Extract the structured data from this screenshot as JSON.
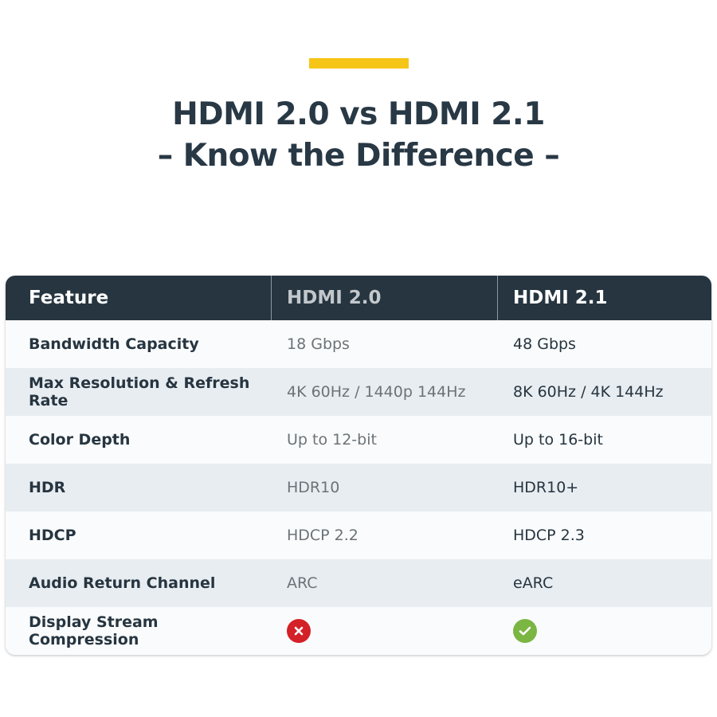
{
  "title_line1": "HDMI 2.0 vs HDMI 2.1",
  "title_line2": "– Know the Difference –",
  "colors": {
    "accent": "#f5c518",
    "header_bg": "#263540",
    "no": "#d42027",
    "yes": "#7bb642"
  },
  "table": {
    "headers": [
      "Feature",
      "HDMI 2.0",
      "HDMI 2.1"
    ],
    "rows": [
      {
        "feature": "Bandwidth Capacity",
        "hdmi20": "18 Gbps",
        "hdmi21": "48 Gbps"
      },
      {
        "feature": "Max Resolution & Refresh Rate",
        "hdmi20": "4K 60Hz / 1440p 144Hz",
        "hdmi21": "8K 60Hz / 4K 144Hz"
      },
      {
        "feature": "Color Depth",
        "hdmi20": "Up to 12-bit",
        "hdmi21": "Up to 16-bit"
      },
      {
        "feature": "HDR",
        "hdmi20": "HDR10",
        "hdmi21": "HDR10+"
      },
      {
        "feature": "HDCP",
        "hdmi20": "HDCP 2.2",
        "hdmi21": "HDCP 2.3"
      },
      {
        "feature": "Audio Return Channel",
        "hdmi20": "ARC",
        "hdmi21": "eARC"
      },
      {
        "feature": "Display Stream Compression",
        "hdmi20_icon": "x-circle-icon",
        "hdmi21_icon": "check-circle-icon"
      }
    ]
  }
}
